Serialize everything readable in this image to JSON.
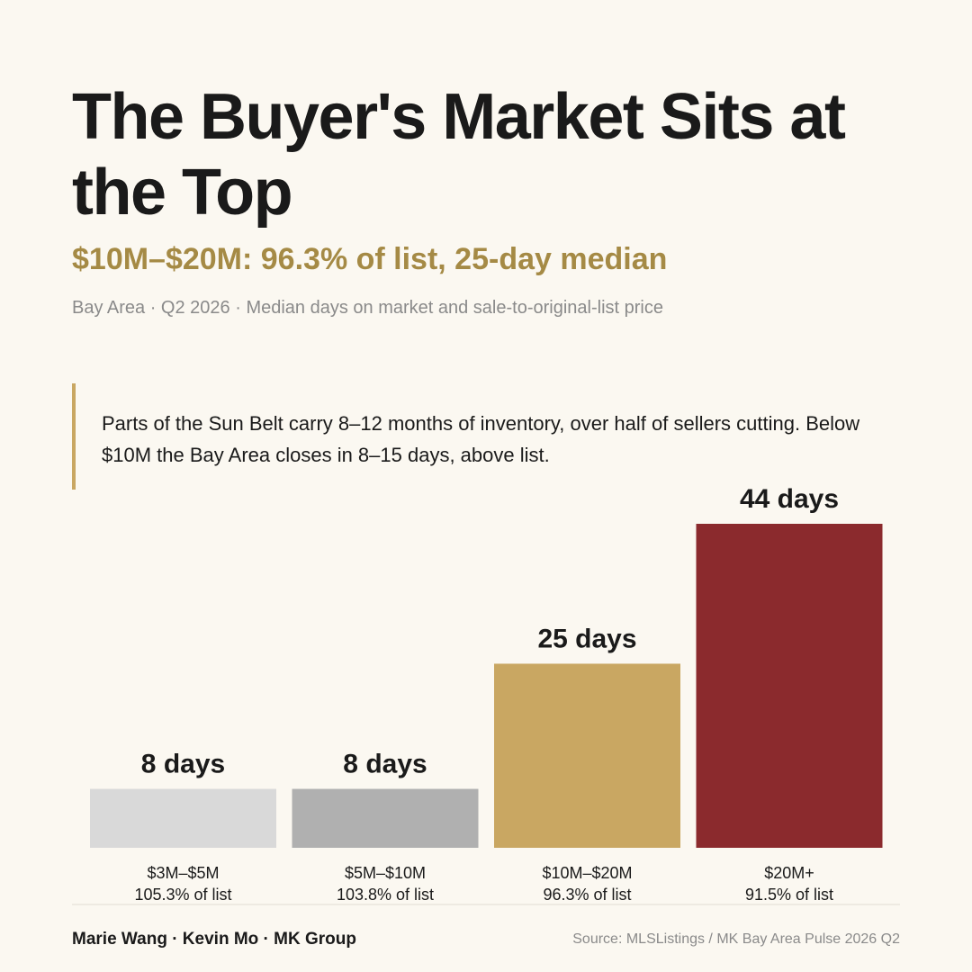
{
  "header": {
    "title": "The Buyer's Market Sits at the Top",
    "subtitle": "$10M–$20M: 96.3% of list, 25-day median",
    "meta": "Bay Area · Q2 2026 · Median days on market and sale-to-original-list price"
  },
  "callout": {
    "text": "Parts of the Sun Belt carry 8–12 months of inventory, over half of sellers cutting. Below $10M the Bay Area closes in 8–15 days, above list."
  },
  "colors": {
    "background": "#fbf8f1",
    "accent": "#a58a45",
    "callout_rule": "#c9a762",
    "bar_1": "#d9d9d9",
    "bar_2": "#b0b0b0",
    "bar_3": "#c9a762",
    "bar_4": "#8b2a2d"
  },
  "chart_data": {
    "type": "bar",
    "categories": [
      "$3M–$5M",
      "$5M–$10M",
      "$10M–$20M",
      "$20M+"
    ],
    "values": [
      8,
      8,
      25,
      44
    ],
    "value_labels": [
      "8 days",
      "8 days",
      "25 days",
      "44 days"
    ],
    "secondary_labels": [
      "105.3% of list",
      "103.8% of list",
      "96.3% of list",
      "91.5% of list"
    ],
    "colors": [
      "#d9d9d9",
      "#b0b0b0",
      "#c9a762",
      "#8b2a2d"
    ],
    "title": "",
    "xlabel": "",
    "ylabel": "",
    "ylim": [
      0,
      44
    ],
    "grid": false
  },
  "footer": {
    "authors": "Marie Wang · Kevin Mo · MK Group",
    "source": "Source: MLSListings / MK Bay Area Pulse 2026 Q2"
  }
}
